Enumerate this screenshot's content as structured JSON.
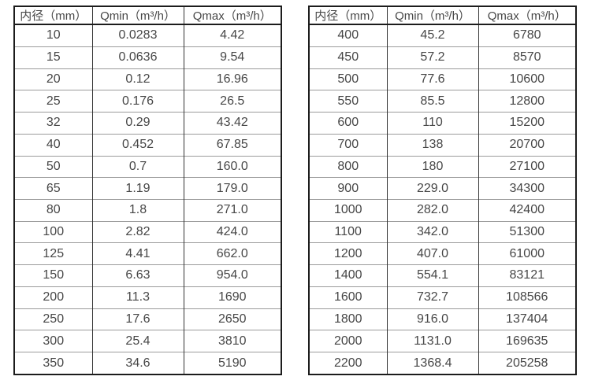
{
  "colors": {
    "background": "#ffffff",
    "text": "#474747",
    "border_dark": "#1c1c1c",
    "border_vertical": "#343434",
    "border_row": "#9b9b9b"
  },
  "chart_data": [
    {
      "type": "table",
      "name": "flow-capacity-table-small-diameters",
      "headers": [
        "内径（mm）",
        "Qmin（m³/h）",
        "Qmax（m³/h）"
      ],
      "rows": [
        [
          "10",
          "0.0283",
          "4.42"
        ],
        [
          "15",
          "0.0636",
          "9.54"
        ],
        [
          "20",
          "0.12",
          "16.96"
        ],
        [
          "25",
          "0.176",
          "26.5"
        ],
        [
          "32",
          "0.29",
          "43.42"
        ],
        [
          "40",
          "0.452",
          "67.85"
        ],
        [
          "50",
          "0.7",
          "160.0"
        ],
        [
          "65",
          "1.19",
          "179.0"
        ],
        [
          "80",
          "1.8",
          "271.0"
        ],
        [
          "100",
          "2.82",
          "424.0"
        ],
        [
          "125",
          "4.41",
          "662.0"
        ],
        [
          "150",
          "6.63",
          "954.0"
        ],
        [
          "200",
          "11.3",
          "1690"
        ],
        [
          "250",
          "17.6",
          "2650"
        ],
        [
          "300",
          "25.4",
          "3810"
        ],
        [
          "350",
          "34.6",
          "5190"
        ]
      ]
    },
    {
      "type": "table",
      "name": "flow-capacity-table-large-diameters",
      "headers": [
        "内径（mm）",
        "Qmin（m³/h）",
        "Qmax（m³/h）"
      ],
      "rows": [
        [
          "400",
          "45.2",
          "6780"
        ],
        [
          "450",
          "57.2",
          "8570"
        ],
        [
          "500",
          "77.6",
          "10600"
        ],
        [
          "550",
          "85.5",
          "12800"
        ],
        [
          "600",
          "110",
          "15200"
        ],
        [
          "700",
          "138",
          "20700"
        ],
        [
          "800",
          "180",
          "27100"
        ],
        [
          "900",
          "229.0",
          "34300"
        ],
        [
          "1000",
          "282.0",
          "42400"
        ],
        [
          "1100",
          "342.0",
          "51300"
        ],
        [
          "1200",
          "407.0",
          "61000"
        ],
        [
          "1400",
          "554.1",
          "83121"
        ],
        [
          "1600",
          "732.7",
          "108566"
        ],
        [
          "1800",
          "916.0",
          "137404"
        ],
        [
          "2000",
          "1131.0",
          "169635"
        ],
        [
          "2200",
          "1368.4",
          "205258"
        ]
      ]
    }
  ]
}
